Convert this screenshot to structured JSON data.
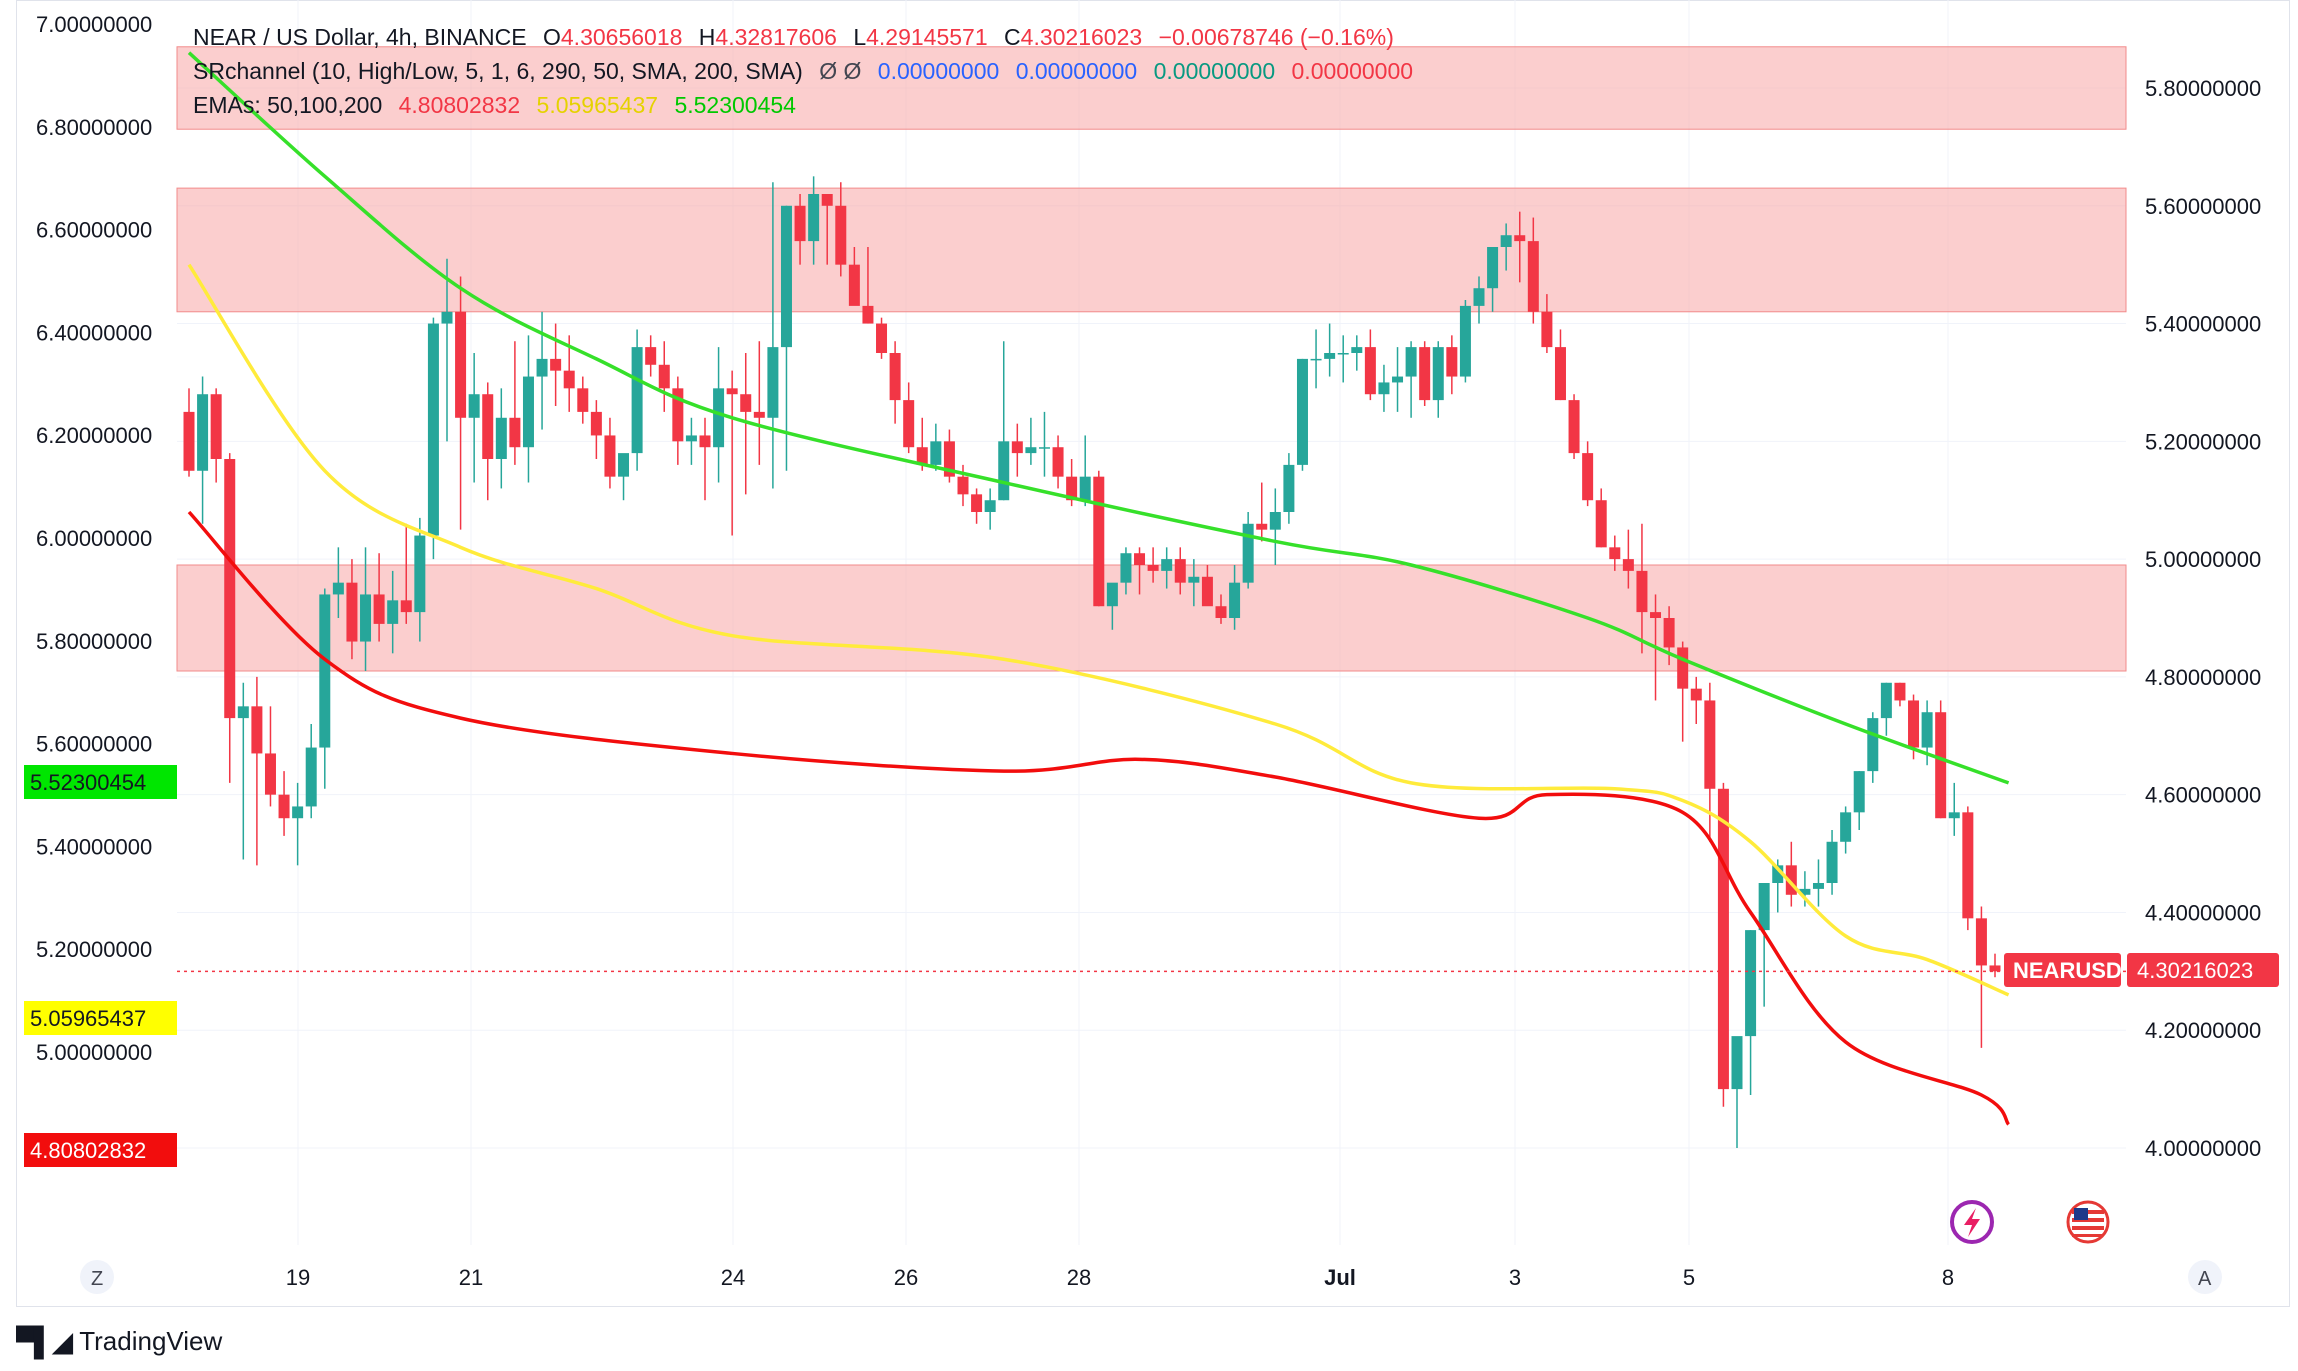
{
  "legend": {
    "symbol": "NEAR / US Dollar, 4h, BINANCE",
    "o_label": "O",
    "o": "4.30656018",
    "h_label": "H",
    "h": "4.32817606",
    "l_label": "L",
    "l": "4.29145571",
    "c_label": "C",
    "c": "4.30216023",
    "change": "−0.00678746 (−0.16%)",
    "sr_name": "SRchannel (10, High/Low, 5, 1, 6, 290, 50, SMA, 200, SMA)",
    "sr_symbols": "Ø  Ø",
    "sr_values": [
      "0.00000000",
      "0.00000000",
      "0.00000000",
      "0.00000000"
    ],
    "ema_name": "EMAs: 50,100,200",
    "ema_values": [
      "4.80802832",
      "5.05965437",
      "5.52300454"
    ]
  },
  "colors": {
    "up": "#26a69a",
    "down": "#f23645",
    "zone_fill": "#f7a6a6",
    "ema50": "#f20d0d",
    "ema100": "#ffeb3b",
    "ema200": "#36e02a",
    "blue": "#2962ff",
    "green_text": "#089981",
    "yellow_text": "#e5d200"
  },
  "badges": {
    "ema200": "5.52300454",
    "ema100": "5.05965437",
    "ema50": "4.80802832",
    "symbol": "NEARUSD",
    "price": "4.30216023"
  },
  "footer": {
    "brand": "TradingView",
    "left_btn": "Z",
    "right_btn": "A"
  },
  "chart_data": {
    "type": "candlestick",
    "left_axis": {
      "ticks": [
        "7.00000000",
        "6.80000000",
        "6.60000000",
        "6.40000000",
        "6.20000000",
        "6.00000000",
        "5.80000000",
        "5.60000000",
        "5.40000000",
        "5.20000000",
        "5.00000000"
      ],
      "range": [
        4.7,
        7.0
      ]
    },
    "right_axis": {
      "ticks": [
        "5.80000000",
        "5.60000000",
        "5.40000000",
        "5.20000000",
        "5.00000000",
        "4.80000000",
        "4.60000000",
        "4.40000000",
        "4.20000000",
        "4.00000000"
      ],
      "range": [
        3.9,
        5.9
      ]
    },
    "x_labels": [
      "19",
      "21",
      "24",
      "26",
      "28",
      "Jul",
      "3",
      "5",
      "8"
    ],
    "zones": [
      [
        5.73,
        5.87
      ],
      [
        5.42,
        5.63
      ],
      [
        4.81,
        4.99
      ]
    ],
    "candles": [
      [
        5.25,
        5.29,
        5.14,
        5.15
      ],
      [
        5.15,
        5.31,
        5.06,
        5.28
      ],
      [
        5.28,
        5.29,
        5.13,
        5.17
      ],
      [
        5.17,
        5.18,
        4.62,
        4.73
      ],
      [
        4.73,
        4.79,
        4.49,
        4.75
      ],
      [
        4.75,
        4.8,
        4.48,
        4.67
      ],
      [
        4.67,
        4.75,
        4.58,
        4.6
      ],
      [
        4.6,
        4.64,
        4.53,
        4.56
      ],
      [
        4.56,
        4.62,
        4.48,
        4.58
      ],
      [
        4.58,
        4.72,
        4.56,
        4.68
      ],
      [
        4.68,
        4.95,
        4.61,
        4.94
      ],
      [
        4.94,
        5.02,
        4.9,
        4.96
      ],
      [
        4.96,
        5.0,
        4.83,
        4.86
      ],
      [
        4.86,
        5.02,
        4.81,
        4.94
      ],
      [
        4.94,
        5.01,
        4.86,
        4.89
      ],
      [
        4.89,
        4.98,
        4.84,
        4.93
      ],
      [
        4.93,
        5.06,
        4.89,
        4.91
      ],
      [
        4.91,
        5.07,
        4.86,
        5.04
      ],
      [
        5.04,
        5.41,
        5.0,
        5.4
      ],
      [
        5.4,
        5.51,
        5.2,
        5.42
      ],
      [
        5.42,
        5.48,
        5.05,
        5.24
      ],
      [
        5.24,
        5.35,
        5.13,
        5.28
      ],
      [
        5.28,
        5.3,
        5.1,
        5.17
      ],
      [
        5.17,
        5.29,
        5.12,
        5.24
      ],
      [
        5.24,
        5.37,
        5.16,
        5.19
      ],
      [
        5.19,
        5.38,
        5.13,
        5.31
      ],
      [
        5.31,
        5.42,
        5.22,
        5.34
      ],
      [
        5.34,
        5.4,
        5.26,
        5.32
      ],
      [
        5.32,
        5.38,
        5.25,
        5.29
      ],
      [
        5.29,
        5.31,
        5.23,
        5.25
      ],
      [
        5.25,
        5.27,
        5.17,
        5.21
      ],
      [
        5.21,
        5.24,
        5.12,
        5.14
      ],
      [
        5.14,
        5.16,
        5.1,
        5.18
      ],
      [
        5.18,
        5.39,
        5.15,
        5.36
      ],
      [
        5.36,
        5.38,
        5.31,
        5.33
      ],
      [
        5.33,
        5.37,
        5.25,
        5.29
      ],
      [
        5.29,
        5.31,
        5.16,
        5.2
      ],
      [
        5.2,
        5.24,
        5.16,
        5.21
      ],
      [
        5.21,
        5.24,
        5.1,
        5.19
      ],
      [
        5.19,
        5.36,
        5.13,
        5.29
      ],
      [
        5.29,
        5.32,
        5.04,
        5.28
      ],
      [
        5.28,
        5.35,
        5.11,
        5.25
      ],
      [
        5.25,
        5.37,
        5.16,
        5.24
      ],
      [
        5.24,
        5.64,
        5.12,
        5.36
      ],
      [
        5.36,
        5.6,
        5.15,
        5.6
      ],
      [
        5.6,
        5.62,
        5.5,
        5.54
      ],
      [
        5.54,
        5.65,
        5.5,
        5.62
      ],
      [
        5.62,
        5.62,
        5.5,
        5.6
      ],
      [
        5.6,
        5.64,
        5.48,
        5.5
      ],
      [
        5.5,
        5.53,
        5.44,
        5.43
      ],
      [
        5.43,
        5.53,
        5.4,
        5.4
      ],
      [
        5.4,
        5.41,
        5.34,
        5.35
      ],
      [
        5.35,
        5.37,
        5.23,
        5.27
      ],
      [
        5.27,
        5.3,
        5.18,
        5.19
      ],
      [
        5.19,
        5.24,
        5.15,
        5.16
      ],
      [
        5.16,
        5.23,
        5.15,
        5.2
      ],
      [
        5.2,
        5.22,
        5.13,
        5.14
      ],
      [
        5.14,
        5.16,
        5.09,
        5.11
      ],
      [
        5.11,
        5.12,
        5.06,
        5.08
      ],
      [
        5.08,
        5.12,
        5.05,
        5.1
      ],
      [
        5.1,
        5.37,
        5.1,
        5.2
      ],
      [
        5.2,
        5.23,
        5.14,
        5.18
      ],
      [
        5.18,
        5.24,
        5.16,
        5.19
      ],
      [
        5.19,
        5.25,
        5.14,
        5.19
      ],
      [
        5.19,
        5.21,
        5.12,
        5.14
      ],
      [
        5.14,
        5.17,
        5.09,
        5.1
      ],
      [
        5.1,
        5.21,
        5.09,
        5.14
      ],
      [
        5.14,
        5.15,
        4.92,
        4.92
      ],
      [
        4.92,
        4.95,
        4.88,
        4.96
      ],
      [
        4.96,
        5.02,
        4.94,
        5.01
      ],
      [
        5.01,
        5.02,
        4.94,
        4.99
      ],
      [
        4.99,
        5.02,
        4.96,
        4.98
      ],
      [
        4.98,
        5.02,
        4.95,
        5.0
      ],
      [
        5.0,
        5.02,
        4.94,
        4.96
      ],
      [
        4.96,
        5.0,
        4.92,
        4.97
      ],
      [
        4.97,
        4.99,
        4.93,
        4.92
      ],
      [
        4.92,
        4.94,
        4.89,
        4.9
      ],
      [
        4.9,
        4.99,
        4.88,
        4.96
      ],
      [
        4.96,
        5.08,
        4.95,
        5.06
      ],
      [
        5.06,
        5.13,
        5.03,
        5.05
      ],
      [
        5.05,
        5.12,
        4.99,
        5.08
      ],
      [
        5.08,
        5.18,
        5.06,
        5.16
      ],
      [
        5.16,
        5.34,
        5.15,
        5.34
      ],
      [
        5.34,
        5.39,
        5.29,
        5.34
      ],
      [
        5.34,
        5.4,
        5.31,
        5.35
      ],
      [
        5.35,
        5.38,
        5.3,
        5.35
      ],
      [
        5.35,
        5.38,
        5.32,
        5.36
      ],
      [
        5.36,
        5.39,
        5.27,
        5.28
      ],
      [
        5.28,
        5.33,
        5.25,
        5.3
      ],
      [
        5.3,
        5.36,
        5.25,
        5.31
      ],
      [
        5.31,
        5.37,
        5.24,
        5.36
      ],
      [
        5.36,
        5.37,
        5.26,
        5.27
      ],
      [
        5.27,
        5.37,
        5.24,
        5.36
      ],
      [
        5.36,
        5.38,
        5.28,
        5.31
      ],
      [
        5.31,
        5.44,
        5.3,
        5.43
      ],
      [
        5.43,
        5.48,
        5.4,
        5.46
      ],
      [
        5.46,
        5.53,
        5.42,
        5.53
      ],
      [
        5.53,
        5.57,
        5.49,
        5.55
      ],
      [
        5.55,
        5.59,
        5.47,
        5.54
      ],
      [
        5.54,
        5.58,
        5.4,
        5.42
      ],
      [
        5.42,
        5.45,
        5.35,
        5.36
      ],
      [
        5.36,
        5.39,
        5.27,
        5.27
      ],
      [
        5.27,
        5.28,
        5.17,
        5.18
      ],
      [
        5.18,
        5.2,
        5.09,
        5.1
      ],
      [
        5.1,
        5.12,
        5.02,
        5.02
      ],
      [
        5.02,
        5.04,
        4.98,
        5.0
      ],
      [
        5.0,
        5.05,
        4.95,
        4.98
      ],
      [
        4.98,
        5.06,
        4.84,
        4.91
      ],
      [
        4.91,
        4.94,
        4.76,
        4.9
      ],
      [
        4.9,
        4.92,
        4.82,
        4.85
      ],
      [
        4.85,
        4.86,
        4.69,
        4.78
      ],
      [
        4.78,
        4.8,
        4.72,
        4.76
      ],
      [
        4.76,
        4.79,
        4.52,
        4.61
      ],
      [
        4.61,
        4.62,
        4.07,
        4.1
      ],
      [
        4.1,
        4.18,
        4.0,
        4.19
      ],
      [
        4.19,
        4.37,
        4.09,
        4.37
      ],
      [
        4.37,
        4.43,
        4.24,
        4.45
      ],
      [
        4.45,
        4.49,
        4.4,
        4.48
      ],
      [
        4.48,
        4.52,
        4.41,
        4.43
      ],
      [
        4.43,
        4.47,
        4.41,
        4.44
      ],
      [
        4.44,
        4.49,
        4.41,
        4.45
      ],
      [
        4.45,
        4.54,
        4.43,
        4.52
      ],
      [
        4.52,
        4.58,
        4.5,
        4.57
      ],
      [
        4.57,
        4.64,
        4.54,
        4.64
      ],
      [
        4.64,
        4.74,
        4.62,
        4.73
      ],
      [
        4.73,
        4.79,
        4.7,
        4.79
      ],
      [
        4.79,
        4.79,
        4.75,
        4.76
      ],
      [
        4.76,
        4.77,
        4.66,
        4.68
      ],
      [
        4.68,
        4.76,
        4.65,
        4.74
      ],
      [
        4.74,
        4.76,
        4.56,
        4.56
      ],
      [
        4.56,
        4.62,
        4.53,
        4.57
      ],
      [
        4.57,
        4.58,
        4.37,
        4.39
      ],
      [
        4.39,
        4.41,
        4.17,
        4.31
      ],
      [
        4.31,
        4.33,
        4.29,
        4.3
      ]
    ],
    "ema50": [
      [
        0,
        5.08
      ],
      [
        10,
        4.83
      ],
      [
        20,
        4.73
      ],
      [
        40,
        4.67
      ],
      [
        60,
        4.64
      ],
      [
        70,
        4.66
      ],
      [
        80,
        4.63
      ],
      [
        95,
        4.56
      ],
      [
        100,
        4.6
      ],
      [
        110,
        4.57
      ],
      [
        115,
        4.4
      ],
      [
        122,
        4.18
      ],
      [
        132,
        4.09
      ],
      [
        134,
        4.04
      ]
    ],
    "ema100": [
      [
        0,
        5.5
      ],
      [
        10,
        5.15
      ],
      [
        20,
        5.02
      ],
      [
        30,
        4.95
      ],
      [
        40,
        4.87
      ],
      [
        60,
        4.83
      ],
      [
        80,
        4.72
      ],
      [
        90,
        4.62
      ],
      [
        105,
        4.61
      ],
      [
        110,
        4.59
      ],
      [
        115,
        4.52
      ],
      [
        122,
        4.36
      ],
      [
        128,
        4.32
      ],
      [
        134,
        4.26
      ]
    ],
    "ema200": [
      [
        0,
        5.86
      ],
      [
        10,
        5.65
      ],
      [
        20,
        5.46
      ],
      [
        30,
        5.34
      ],
      [
        40,
        5.24
      ],
      [
        60,
        5.13
      ],
      [
        80,
        5.03
      ],
      [
        90,
        4.99
      ],
      [
        103,
        4.9
      ],
      [
        110,
        4.83
      ],
      [
        122,
        4.72
      ],
      [
        134,
        4.62
      ]
    ]
  }
}
